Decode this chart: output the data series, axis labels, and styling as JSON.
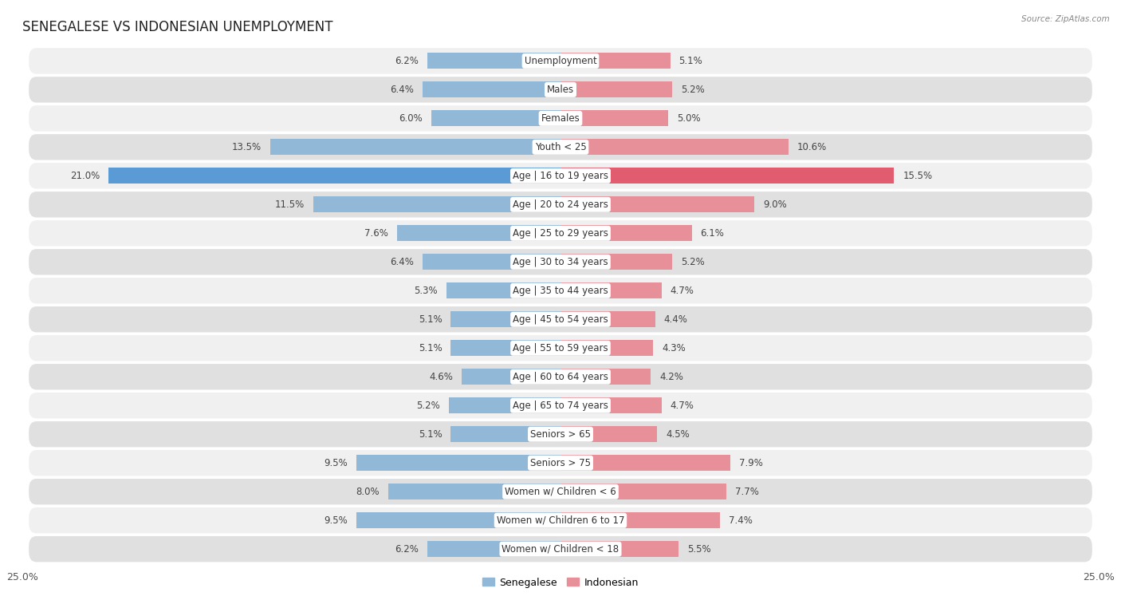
{
  "title": "SENEGALESE VS INDONESIAN UNEMPLOYMENT",
  "source": "Source: ZipAtlas.com",
  "categories": [
    "Unemployment",
    "Males",
    "Females",
    "Youth < 25",
    "Age | 16 to 19 years",
    "Age | 20 to 24 years",
    "Age | 25 to 29 years",
    "Age | 30 to 34 years",
    "Age | 35 to 44 years",
    "Age | 45 to 54 years",
    "Age | 55 to 59 years",
    "Age | 60 to 64 years",
    "Age | 65 to 74 years",
    "Seniors > 65",
    "Seniors > 75",
    "Women w/ Children < 6",
    "Women w/ Children 6 to 17",
    "Women w/ Children < 18"
  ],
  "senegalese": [
    6.2,
    6.4,
    6.0,
    13.5,
    21.0,
    11.5,
    7.6,
    6.4,
    5.3,
    5.1,
    5.1,
    4.6,
    5.2,
    5.1,
    9.5,
    8.0,
    9.5,
    6.2
  ],
  "indonesian": [
    5.1,
    5.2,
    5.0,
    10.6,
    15.5,
    9.0,
    6.1,
    5.2,
    4.7,
    4.4,
    4.3,
    4.2,
    4.7,
    4.5,
    7.9,
    7.7,
    7.4,
    5.5
  ],
  "senegalese_color": "#92b8d8",
  "indonesian_color": "#e8909a",
  "highlight_senegalese_color": "#5b9bd5",
  "highlight_indonesian_color": "#e05c6e",
  "highlight_senegalese_text": "#ffffff",
  "highlight_indonesian_text": "#ffffff",
  "row_bg_odd": "#f0f0f0",
  "row_bg_even": "#e0e0e0",
  "x_max": 25.0,
  "legend_senegalese": "Senegalese",
  "legend_indonesian": "Indonesian",
  "title_fontsize": 12,
  "label_fontsize": 8.5,
  "value_fontsize": 8.5
}
